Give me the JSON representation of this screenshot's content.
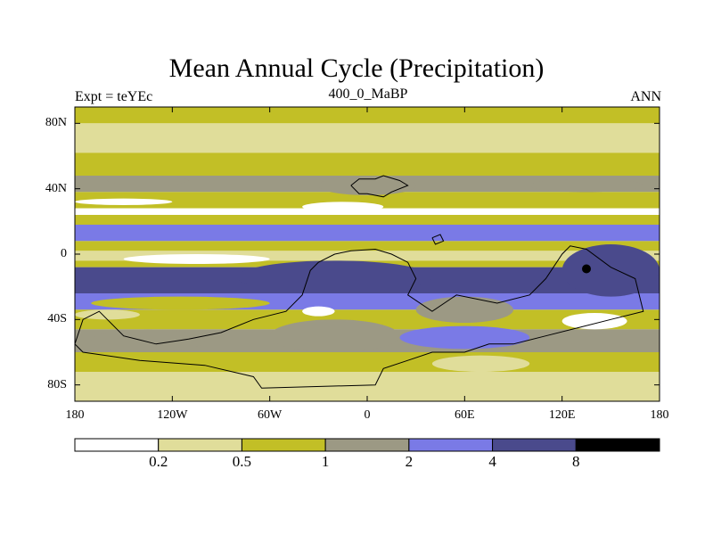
{
  "chart_data": {
    "type": "heatmap",
    "title": "Mean Annual Cycle (Precipitation)",
    "left_string": "Expt = teYEc",
    "center_string": "400_0_MaBP",
    "right_string": "ANN",
    "x_ticks": [
      {
        "value": -180,
        "label": "180"
      },
      {
        "value": -120,
        "label": "120W"
      },
      {
        "value": -60,
        "label": "60W"
      },
      {
        "value": 0,
        "label": "0"
      },
      {
        "value": 60,
        "label": "60E"
      },
      {
        "value": 120,
        "label": "120E"
      },
      {
        "value": 180,
        "label": "180"
      }
    ],
    "y_ticks": [
      {
        "value": 80,
        "label": "80N"
      },
      {
        "value": 40,
        "label": "40N"
      },
      {
        "value": 0,
        "label": "0"
      },
      {
        "value": -40,
        "label": "40S"
      },
      {
        "value": -80,
        "label": "80S"
      }
    ],
    "xlim": [
      -180,
      180
    ],
    "ylim": [
      -90,
      90
    ],
    "levels": [
      "0.2",
      "0.5",
      "1",
      "2",
      "4",
      "8"
    ],
    "colors": [
      "#ffffff",
      "#e0dd9a",
      "#c2bf26",
      "#9c9984",
      "#7a7ae6",
      "#4a4a8c",
      "#000000"
    ],
    "zonal_bands": [
      {
        "lat": [
          80,
          90
        ],
        "bin": 2
      },
      {
        "lat": [
          62,
          80
        ],
        "bin": 1
      },
      {
        "lat": [
          48,
          62
        ],
        "bin": 2
      },
      {
        "lat": [
          38,
          48
        ],
        "bin": 3
      },
      {
        "lat": [
          28,
          38
        ],
        "bin": 2
      },
      {
        "lat": [
          24,
          28
        ],
        "bin": 0
      },
      {
        "lat": [
          18,
          24
        ],
        "bin": 2
      },
      {
        "lat": [
          8,
          18
        ],
        "bin": 4
      },
      {
        "lat": [
          2,
          8
        ],
        "bin": 2
      },
      {
        "lat": [
          -4,
          2
        ],
        "bin": 1
      },
      {
        "lat": [
          -8,
          -4
        ],
        "bin": 2
      },
      {
        "lat": [
          -24,
          -8
        ],
        "bin": 5
      },
      {
        "lat": [
          -34,
          -24
        ],
        "bin": 4
      },
      {
        "lat": [
          -46,
          -34
        ],
        "bin": 2
      },
      {
        "lat": [
          -60,
          -46
        ],
        "bin": 3
      },
      {
        "lat": [
          -72,
          -60
        ],
        "bin": 2
      },
      {
        "lat": [
          -90,
          -72
        ],
        "bin": 1
      }
    ],
    "patches": [
      {
        "lon": [
          -160,
          -110
        ],
        "lat": [
          42,
          48
        ],
        "bin": 3
      },
      {
        "lon": [
          -30,
          30
        ],
        "lat": [
          36,
          48
        ],
        "bin": 3
      },
      {
        "lon": [
          100,
          170
        ],
        "lat": [
          38,
          46
        ],
        "bin": 3
      },
      {
        "lon": [
          -180,
          -120
        ],
        "lat": [
          30,
          34
        ],
        "bin": 0
      },
      {
        "lon": [
          -40,
          10
        ],
        "lat": [
          26,
          32
        ],
        "bin": 0
      },
      {
        "lon": [
          -80,
          40
        ],
        "lat": [
          -24,
          -4
        ],
        "bin": 5
      },
      {
        "lon": [
          120,
          180
        ],
        "lat": [
          -26,
          6
        ],
        "bin": 5
      },
      {
        "lon": [
          -150,
          -60
        ],
        "lat": [
          -6,
          0
        ],
        "bin": 0
      },
      {
        "lon": [
          -170,
          -60
        ],
        "lat": [
          -34,
          -26
        ],
        "bin": 2
      },
      {
        "lon": [
          30,
          90
        ],
        "lat": [
          -42,
          -26
        ],
        "bin": 3
      },
      {
        "lon": [
          -170,
          -100
        ],
        "lat": [
          -60,
          -46
        ],
        "bin": 3
      },
      {
        "lon": [
          -60,
          20
        ],
        "lat": [
          -60,
          -40
        ],
        "bin": 3
      },
      {
        "lon": [
          20,
          100
        ],
        "lat": [
          -58,
          -44
        ],
        "bin": 4
      },
      {
        "lon": [
          120,
          160
        ],
        "lat": [
          -46,
          -36
        ],
        "bin": 0
      },
      {
        "lon": [
          -40,
          -20
        ],
        "lat": [
          -38,
          -32
        ],
        "bin": 0
      },
      {
        "lon": [
          -180,
          -140
        ],
        "lat": [
          -40,
          -34
        ],
        "bin": 1
      },
      {
        "lon": [
          40,
          100
        ],
        "lat": [
          -72,
          -62
        ],
        "bin": 1
      }
    ],
    "spots": [
      {
        "lon": 135,
        "lat": -9,
        "bin": 6
      }
    ],
    "coastlines": [
      {
        "name": "north-land",
        "points": [
          [
            -10,
            42
          ],
          [
            -5,
            46
          ],
          [
            5,
            46
          ],
          [
            10,
            48
          ],
          [
            20,
            45
          ],
          [
            25,
            42
          ],
          [
            15,
            38
          ],
          [
            10,
            35
          ],
          [
            0,
            37
          ],
          [
            -5,
            37
          ],
          [
            -10,
            42
          ]
        ]
      },
      {
        "name": "arabia",
        "points": [
          [
            40,
            10
          ],
          [
            45,
            12
          ],
          [
            47,
            8
          ],
          [
            42,
            6
          ],
          [
            40,
            10
          ]
        ]
      },
      {
        "name": "gondwana",
        "points": [
          [
            -20,
            0
          ],
          [
            -10,
            2
          ],
          [
            5,
            3
          ],
          [
            15,
            0
          ],
          [
            25,
            -5
          ],
          [
            30,
            -15
          ],
          [
            25,
            -25
          ],
          [
            40,
            -35
          ],
          [
            55,
            -25
          ],
          [
            80,
            -30
          ],
          [
            100,
            -25
          ],
          [
            110,
            -15
          ],
          [
            120,
            0
          ],
          [
            125,
            5
          ],
          [
            135,
            3
          ],
          [
            150,
            -8
          ],
          [
            165,
            -15
          ],
          [
            170,
            -35
          ],
          [
            150,
            -40
          ],
          [
            130,
            -45
          ],
          [
            110,
            -50
          ],
          [
            90,
            -55
          ],
          [
            75,
            -55
          ],
          [
            60,
            -60
          ],
          [
            40,
            -60
          ],
          [
            25,
            -65
          ],
          [
            10,
            -70
          ],
          [
            5,
            -80
          ],
          [
            -65,
            -82
          ],
          [
            -70,
            -75
          ],
          [
            -100,
            -68
          ],
          [
            -140,
            -65
          ],
          [
            -175,
            -60
          ],
          [
            -180,
            -55
          ],
          [
            -175,
            -40
          ],
          [
            -165,
            -35
          ],
          [
            -150,
            -50
          ],
          [
            -130,
            -55
          ],
          [
            -110,
            -52
          ],
          [
            -90,
            -48
          ],
          [
            -70,
            -40
          ],
          [
            -50,
            -35
          ],
          [
            -40,
            -25
          ],
          [
            -35,
            -10
          ],
          [
            -30,
            -5
          ],
          [
            -20,
            0
          ]
        ]
      }
    ]
  }
}
